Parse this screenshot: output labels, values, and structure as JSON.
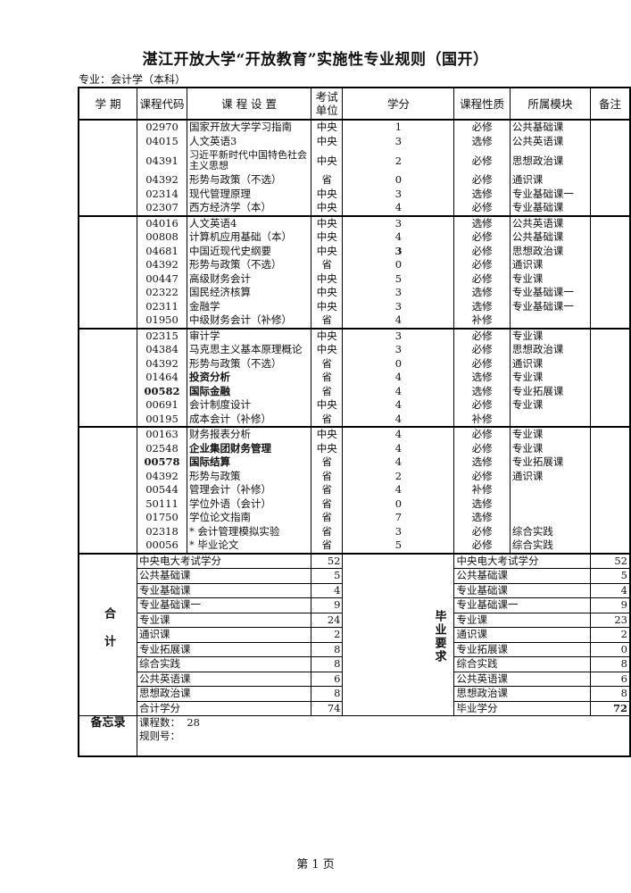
{
  "title": "湛江开放大学“开放教育”实施性专业规则（国开）",
  "major": "专业：会计学（本科）",
  "headers": [
    "学 期",
    "课程代码",
    "课 程 设 置",
    "考试单位",
    "学分",
    "课程性质",
    "所属模块",
    "备注"
  ],
  "groups": [
    [
      {
        "code": "02970",
        "name": "国家开放大学学习指南",
        "unit": "中央",
        "credit": "1",
        "type": "必修",
        "module": "公共基础课"
      },
      {
        "code": "04015",
        "name": "人文英语3",
        "unit": "中央",
        "credit": "3",
        "type": "选修",
        "module": "公共英语课"
      },
      {
        "code": "04391",
        "name": "习近平新时代中国特色社会主义思想",
        "unit": "中央",
        "credit": "2",
        "type": "必修",
        "module": "思想政治课",
        "wrap": true
      },
      {
        "code": "04392",
        "name": "形势与政策（不选）",
        "unit": "省",
        "credit": "0",
        "type": "必修",
        "module": "通识课"
      },
      {
        "code": "02314",
        "name": "现代管理原理",
        "unit": "中央",
        "credit": "3",
        "type": "选修",
        "module": "专业基础课一"
      },
      {
        "code": "02307",
        "name": "西方经济学（本）",
        "unit": "中央",
        "credit": "4",
        "type": "必修",
        "module": "专业基础课"
      }
    ],
    [
      {
        "code": "04016",
        "name": "人文英语4",
        "unit": "中央",
        "credit": "3",
        "type": "选修",
        "module": "公共英语课"
      },
      {
        "code": "00808",
        "name": "计算机应用基础（本）",
        "unit": "中央",
        "credit": "4",
        "type": "必修",
        "module": "公共基础课"
      },
      {
        "code": "04681",
        "name": "中国近现代史纲要",
        "unit": "中央",
        "credit": "3",
        "type": "必修",
        "module": "思想政治课",
        "bold": [
          "credit"
        ]
      },
      {
        "code": "04392",
        "name": "形势与政策（不选）",
        "unit": "省",
        "credit": "0",
        "type": "必修",
        "module": "通识课"
      },
      {
        "code": "00447",
        "name": "高级财务会计",
        "unit": "中央",
        "credit": "5",
        "type": "必修",
        "module": "专业课"
      },
      {
        "code": "02322",
        "name": "国民经济核算",
        "unit": "中央",
        "credit": "3",
        "type": "选修",
        "module": "专业基础课一"
      },
      {
        "code": "02311",
        "name": "金融学",
        "unit": "中央",
        "credit": "3",
        "type": "选修",
        "module": "专业基础课一"
      },
      {
        "code": "01950",
        "name": "中级财务会计（补修）",
        "unit": "省",
        "credit": "4",
        "type": "补修",
        "module": ""
      }
    ],
    [
      {
        "code": "02315",
        "name": "审计学",
        "unit": "中央",
        "credit": "3",
        "type": "必修",
        "module": "专业课"
      },
      {
        "code": "04384",
        "name": "马克思主义基本原理概论",
        "unit": "中央",
        "credit": "3",
        "type": "必修",
        "module": "思想政治课"
      },
      {
        "code": "04392",
        "name": "形势与政策（不选）",
        "unit": "省",
        "credit": "0",
        "type": "必修",
        "module": "通识课"
      },
      {
        "code": "01464",
        "name": "投资分析",
        "unit": "省",
        "credit": "4",
        "type": "选修",
        "module": "专业课",
        "bold": [
          "name"
        ]
      },
      {
        "code": "00582",
        "name": "国际金融",
        "unit": "省",
        "credit": "4",
        "type": "选修",
        "module": "专业拓展课",
        "bold": [
          "code",
          "name"
        ]
      },
      {
        "code": "00691",
        "name": "会计制度设计",
        "unit": "中央",
        "credit": "4",
        "type": "必修",
        "module": "专业课"
      },
      {
        "code": "00195",
        "name": "成本会计（补修）",
        "unit": "省",
        "credit": "4",
        "type": "补修",
        "module": ""
      }
    ],
    [
      {
        "code": "00163",
        "name": "财务报表分析",
        "unit": "中央",
        "credit": "4",
        "type": "必修",
        "module": "专业课"
      },
      {
        "code": "02548",
        "name": "企业集团财务管理",
        "unit": "中央",
        "credit": "4",
        "type": "必修",
        "module": "专业课",
        "bold": [
          "name"
        ]
      },
      {
        "code": "00578",
        "name": "国际结算",
        "unit": "省",
        "credit": "4",
        "type": "选修",
        "module": "专业拓展课",
        "bold": [
          "code",
          "name"
        ]
      },
      {
        "code": "04392",
        "name": "形势与政策",
        "unit": "省",
        "credit": "2",
        "type": "必修",
        "module": "通识课"
      },
      {
        "code": "00544",
        "name": "管理会计（补修）",
        "unit": "省",
        "credit": "4",
        "type": "补修",
        "module": ""
      },
      {
        "code": "50111",
        "name": "学位外语（会计）",
        "unit": "省",
        "credit": "0",
        "type": "选修",
        "module": ""
      },
      {
        "code": "01750",
        "name": "学位论文指南",
        "unit": "省",
        "credit": "7",
        "type": "选修",
        "module": ""
      },
      {
        "code": "02318",
        "name": "* 会计管理模拟实验",
        "unit": "省",
        "credit": "3",
        "type": "必修",
        "module": "综合实践"
      },
      {
        "code": "00056",
        "name": "* 毕业论文",
        "unit": "省",
        "credit": "5",
        "type": "必修",
        "module": "综合实践"
      }
    ]
  ],
  "summary": {
    "total_label": "合计",
    "grad_label": "毕业要求",
    "total": [
      [
        "中央电大考试学分",
        "52"
      ],
      [
        "公共基础课",
        "5"
      ],
      [
        "专业基础课",
        "4"
      ],
      [
        "专业基础课一",
        "9"
      ],
      [
        "专业课",
        "24"
      ],
      [
        "通识课",
        "2"
      ],
      [
        "专业拓展课",
        "8"
      ],
      [
        "综合实践",
        "8"
      ],
      [
        "公共英语课",
        "6"
      ],
      [
        "思想政治课",
        "8"
      ],
      [
        "合计学分",
        "74"
      ]
    ],
    "grad": [
      [
        "中央电大考试学分",
        "52"
      ],
      [
        "公共基础课",
        "5"
      ],
      [
        "专业基础课",
        "4"
      ],
      [
        "专业基础课一",
        "9"
      ],
      [
        "专业课",
        "23"
      ],
      [
        "通识课",
        "2"
      ],
      [
        "专业拓展课",
        "0"
      ],
      [
        "综合实践",
        "8"
      ],
      [
        "公共英语课",
        "6"
      ],
      [
        "思想政治课",
        "8"
      ],
      [
        "毕业学分",
        "72"
      ]
    ]
  },
  "memo": {
    "label": "备忘录",
    "course_count_label": "课程数：",
    "course_count": "28",
    "rule_no_label": "规则号："
  },
  "footer": "第 1 页"
}
